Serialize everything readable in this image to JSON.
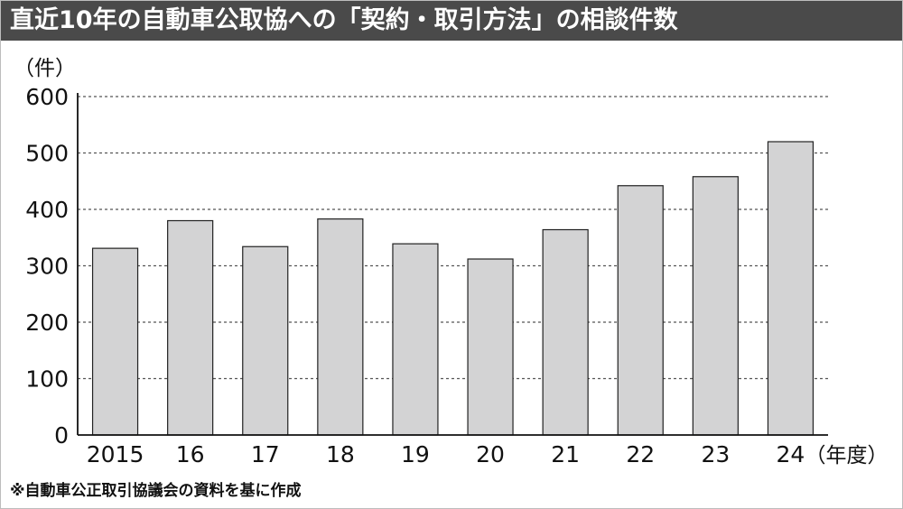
{
  "title": "直近10年の自動車公取協への「契約・取引方法」の相談件数",
  "source_note": "※自動車公正取引協議会の資料を基に作成",
  "colors": {
    "title_bar": "#4a4a4a",
    "bar_fill": "#d3d3d4",
    "bar_stroke": "#222222",
    "grid": "#555555"
  },
  "chart_data": {
    "type": "bar",
    "ylabel": "（件）",
    "xlabel": "（年度）",
    "categories": [
      "2015",
      "16",
      "17",
      "18",
      "19",
      "20",
      "21",
      "22",
      "23",
      "24"
    ],
    "values": [
      331,
      380,
      334,
      383,
      339,
      312,
      364,
      442,
      458,
      520
    ],
    "ylim": [
      0,
      600
    ],
    "yticks": [
      0,
      100,
      200,
      300,
      400,
      500,
      600
    ],
    "grid": true,
    "grid_style": "dotted horizontal"
  }
}
